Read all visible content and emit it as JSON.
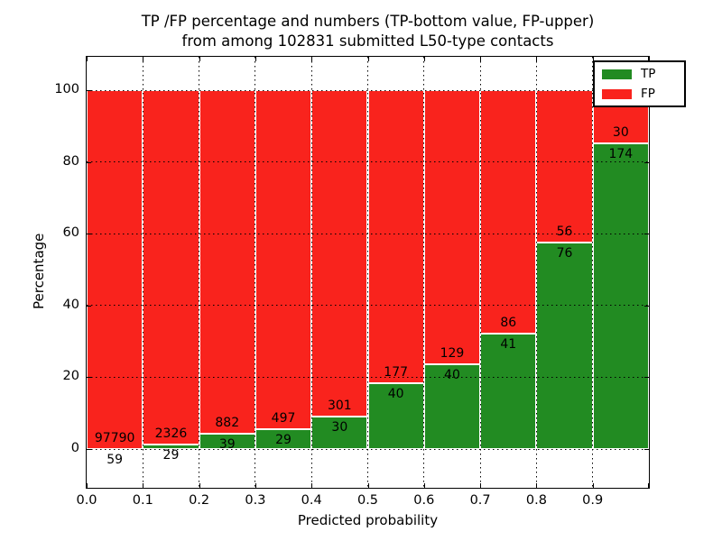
{
  "title": {
    "line1": "TP /FP percentage and numbers (TP-bottom value, FP-upper)",
    "line2": "from among 102831 submitted L50-type contacts"
  },
  "total_submitted": 102831,
  "chart_data": {
    "type": "bar",
    "stacked": true,
    "normalized_to_percent": true,
    "title": "TP /FP percentage and numbers (TP-bottom value, FP-upper) from among 102831 submitted L50-type contacts",
    "xlabel": "Predicted probability",
    "ylabel": "Percentage",
    "categories": [
      "0.0-0.1",
      "0.1-0.2",
      "0.2-0.3",
      "0.3-0.4",
      "0.4-0.5",
      "0.5-0.6",
      "0.6-0.7",
      "0.7-0.8",
      "0.8-0.9",
      "0.9-1.0"
    ],
    "xticks": [
      "0.0",
      "0.1",
      "0.2",
      "0.3",
      "0.4",
      "0.5",
      "0.6",
      "0.7",
      "0.8",
      "0.9"
    ],
    "yticks": [
      0,
      20,
      40,
      60,
      80,
      100
    ],
    "ylim": [
      -10.8,
      109.3
    ],
    "xlim": [
      0.0,
      1.0
    ],
    "grid": "dotted",
    "legend_position": "upper right",
    "series": [
      {
        "name": "TP",
        "color": "#228b22",
        "position": "bottom",
        "values": [
          59,
          29,
          39,
          29,
          30,
          40,
          40,
          41,
          76,
          174
        ]
      },
      {
        "name": "FP",
        "color": "#f9231d",
        "position": "top",
        "values": [
          97790,
          2326,
          882,
          497,
          301,
          177,
          129,
          86,
          56,
          30
        ]
      }
    ],
    "tp_percent": [
      0.06,
      1.23,
      4.23,
      5.51,
      9.06,
      18.43,
      23.67,
      32.28,
      57.58,
      85.29
    ],
    "bar_labels_note": "FP count printed above TP/FP boundary, TP count printed below boundary"
  }
}
